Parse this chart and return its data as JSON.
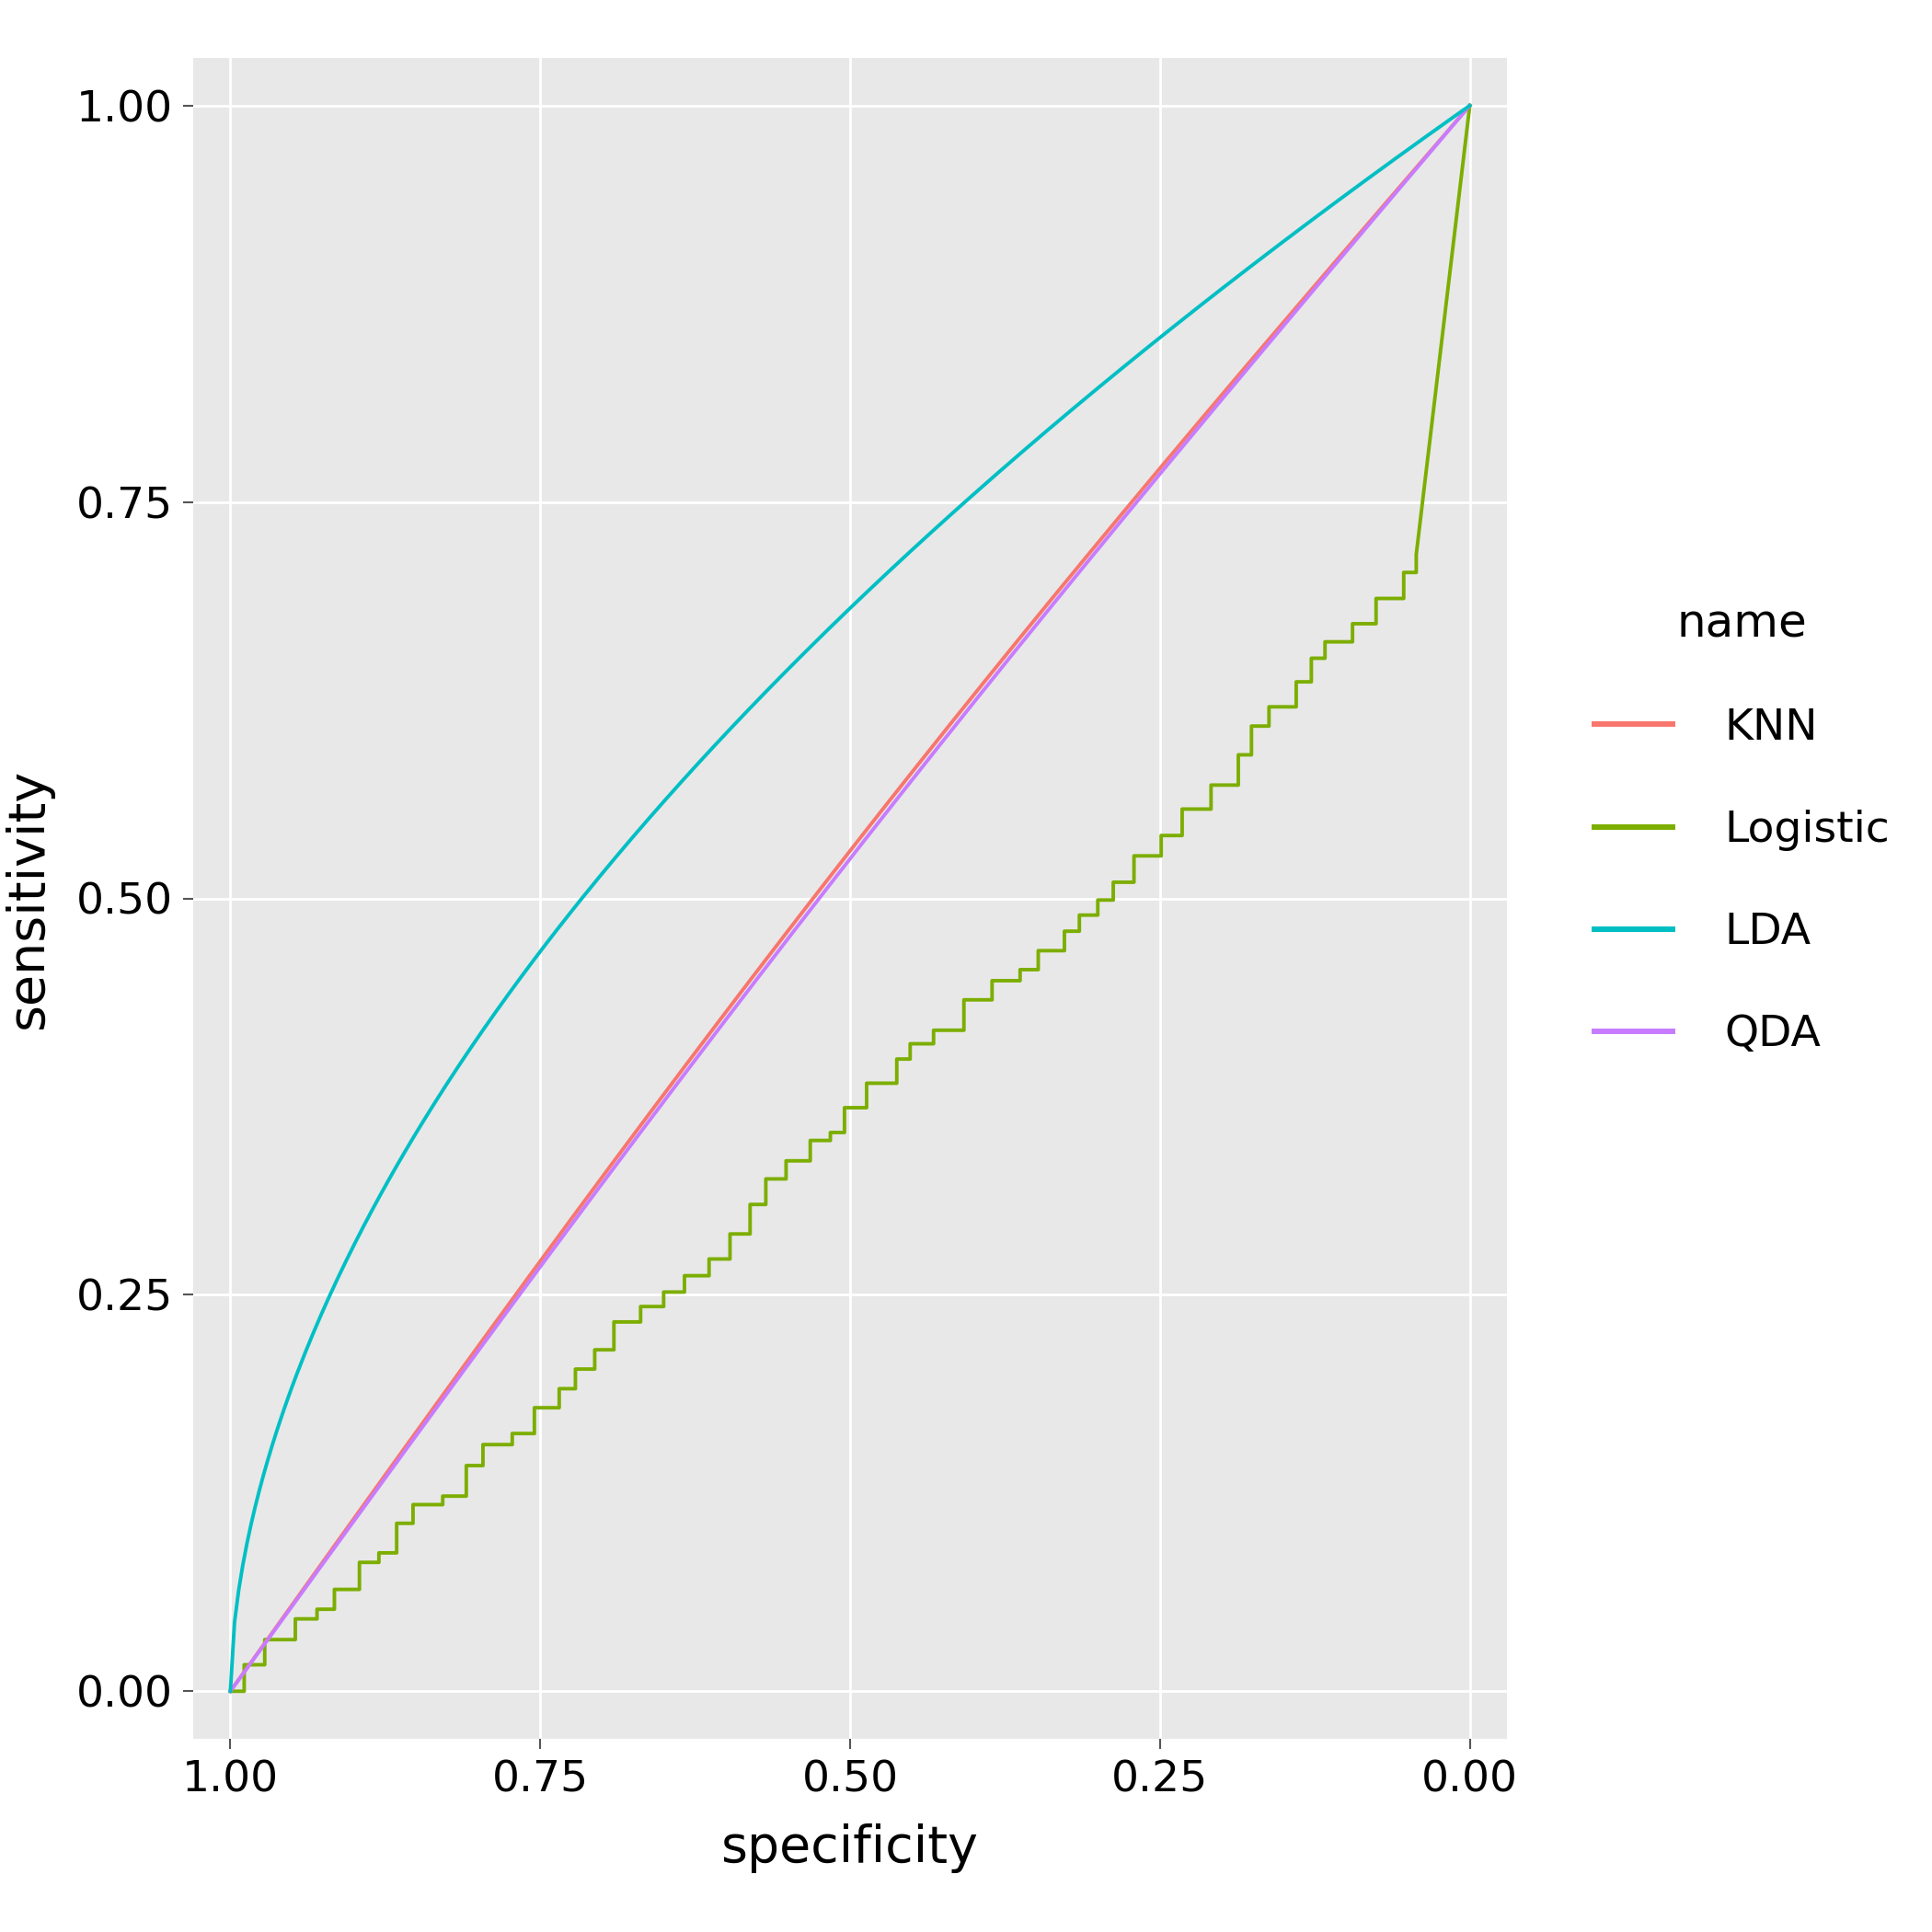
{
  "title": "",
  "xlabel": "specificity",
  "ylabel": "sensitivity",
  "xlim": [
    1.03,
    -0.03
  ],
  "ylim": [
    -0.03,
    1.03
  ],
  "xticks": [
    1.0,
    0.75,
    0.5,
    0.25,
    0.0
  ],
  "yticks": [
    0.0,
    0.25,
    0.5,
    0.75,
    1.0
  ],
  "background_color": "#e8e8e8",
  "grid_color": "#ffffff",
  "legend_title": "name",
  "legend_entries": [
    "KNN",
    "Logistic",
    "LDA",
    "QDA"
  ],
  "legend_colors": [
    "#f8766d",
    "#7cae00",
    "#00bfc4",
    "#c77cff"
  ],
  "knn_color": "#f8766d",
  "logistic_color": "#7cae00",
  "lda_color": "#00bfc4",
  "qda_color": "#c77cff",
  "line_width": 2.8
}
